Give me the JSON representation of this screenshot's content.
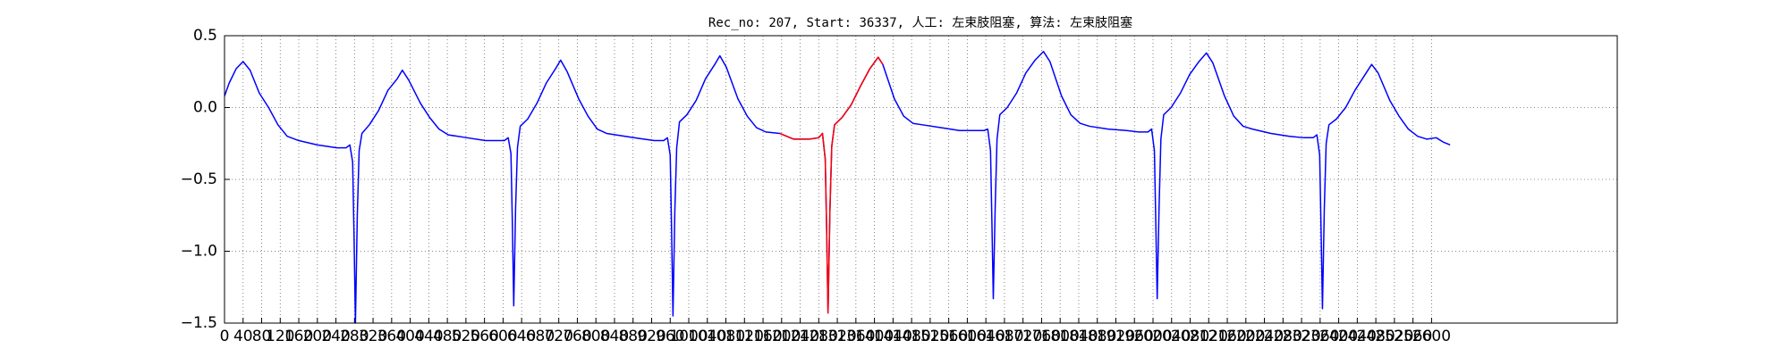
{
  "chart_data": {
    "type": "line",
    "title": "Rec_no: 207, Start: 36337, 人工: 左束肢阻塞, 算法: 左束肢阻塞",
    "xlim": [
      0,
      3000
    ],
    "xticks": [
      0,
      40,
      80,
      120,
      160,
      200,
      240,
      280,
      320,
      360,
      400,
      440,
      480,
      520,
      560,
      600,
      640,
      680,
      720,
      760,
      800,
      840,
      880,
      920,
      960,
      1000,
      1040,
      1080,
      1120,
      1160,
      1200,
      1240,
      1280,
      1320,
      1360,
      1400,
      1440,
      1480,
      1520,
      1560,
      1600,
      1640,
      1680,
      1720,
      1760,
      1800,
      1840,
      1880,
      1920,
      1960,
      2000,
      2040,
      2080,
      2120,
      2160,
      2200,
      2240,
      2280,
      2320,
      2360,
      2400,
      2440,
      2480,
      2520,
      2560,
      2600
    ],
    "ylim": [
      -1.5,
      0.5
    ],
    "yticks": [
      {
        "value": -1.5,
        "label": "−1.5"
      },
      {
        "value": -1.0,
        "label": "−1.0"
      },
      {
        "value": -0.5,
        "label": "−0.5"
      },
      {
        "value": 0,
        "label": "0.0"
      },
      0.5
    ],
    "grid": true,
    "series": [
      {
        "color": "#0000ff",
        "x": [
          0,
          10,
          25,
          40,
          55,
          75,
          95,
          115,
          135,
          160,
          200,
          242,
          262,
          270,
          276,
          279,
          282,
          286,
          290,
          296,
          312,
          332,
          352,
          372,
          383,
          397,
          422,
          442,
          462,
          482,
          522,
          562,
          583,
          603,
          611,
          617,
          620,
          623,
          627,
          631,
          637,
          653,
          673,
          693,
          713,
          724,
          738,
          763,
          783,
          803,
          823,
          863,
          903,
          926,
          946,
          954,
          960,
          963,
          966,
          970,
          974,
          980,
          996,
          1016,
          1036,
          1056,
          1067,
          1081,
          1106,
          1126,
          1146,
          1166,
          1196,
          1226,
          1260,
          1280,
          1288,
          1294,
          1297,
          1300,
          1304,
          1308,
          1314,
          1330,
          1350,
          1370,
          1390,
          1408,
          1418,
          1443,
          1463,
          1483,
          1503,
          1543,
          1583,
          1616,
          1636,
          1644,
          1650,
          1653,
          1656,
          1660,
          1664,
          1670,
          1686,
          1706,
          1726,
          1746,
          1764,
          1778,
          1803,
          1823,
          1843,
          1863,
          1903,
          1943,
          1969,
          1989,
          1997,
          2003,
          2006,
          2009,
          2013,
          2017,
          2023,
          2039,
          2059,
          2079,
          2099,
          2115,
          2129,
          2154,
          2174,
          2194,
          2214,
          2254,
          2294,
          2325,
          2345,
          2353,
          2359,
          2362,
          2365,
          2369,
          2373,
          2379,
          2395,
          2415,
          2435,
          2455,
          2471,
          2485,
          2510,
          2530,
          2550,
          2570,
          2590,
          2610,
          2625,
          2640
        ],
        "values": [
          0.08,
          0.17,
          0.27,
          0.32,
          0.26,
          0.1,
          0.0,
          -0.12,
          -0.2,
          -0.23,
          -0.26,
          -0.28,
          -0.28,
          -0.26,
          -0.38,
          -0.9,
          -1.5,
          -0.75,
          -0.3,
          -0.18,
          -0.12,
          -0.02,
          0.12,
          0.2,
          0.26,
          0.19,
          0.03,
          -0.07,
          -0.15,
          -0.19,
          -0.21,
          -0.23,
          -0.23,
          -0.23,
          -0.21,
          -0.32,
          -0.8,
          -1.38,
          -0.7,
          -0.28,
          -0.13,
          -0.08,
          0.03,
          0.17,
          0.27,
          0.33,
          0.25,
          0.06,
          -0.06,
          -0.15,
          -0.18,
          -0.2,
          -0.22,
          -0.23,
          -0.23,
          -0.21,
          -0.33,
          -0.85,
          -1.45,
          -0.72,
          -0.28,
          -0.1,
          -0.05,
          0.05,
          0.2,
          0.3,
          0.36,
          0.28,
          0.06,
          -0.06,
          -0.14,
          -0.17,
          -0.18,
          -0.22,
          -0.22,
          -0.21,
          -0.18,
          -0.36,
          -0.85,
          -1.43,
          -0.72,
          -0.27,
          -0.12,
          -0.07,
          0.02,
          0.15,
          0.27,
          0.35,
          0.3,
          0.06,
          -0.06,
          -0.11,
          -0.12,
          -0.14,
          -0.16,
          -0.16,
          -0.16,
          -0.15,
          -0.3,
          -0.8,
          -1.33,
          -0.7,
          -0.22,
          -0.05,
          0.0,
          0.1,
          0.24,
          0.33,
          0.39,
          0.32,
          0.08,
          -0.05,
          -0.11,
          -0.13,
          -0.15,
          -0.16,
          -0.17,
          -0.17,
          -0.15,
          -0.3,
          -0.8,
          -1.33,
          -0.7,
          -0.22,
          -0.05,
          0.0,
          0.1,
          0.23,
          0.32,
          0.38,
          0.31,
          0.08,
          -0.06,
          -0.13,
          -0.15,
          -0.18,
          -0.2,
          -0.21,
          -0.21,
          -0.19,
          -0.33,
          -0.85,
          -1.4,
          -0.7,
          -0.25,
          -0.12,
          -0.08,
          0.0,
          0.12,
          0.22,
          0.3,
          0.24,
          0.05,
          -0.06,
          -0.15,
          -0.2,
          -0.22,
          -0.21,
          -0.24,
          -0.26
        ]
      },
      {
        "color": "#ff0000",
        "x": [
          1196,
          1226,
          1260,
          1280,
          1288,
          1294,
          1297,
          1300,
          1304,
          1308,
          1314,
          1330,
          1350,
          1370,
          1390,
          1408,
          1418
        ],
        "values": [
          -0.18,
          -0.22,
          -0.22,
          -0.21,
          -0.18,
          -0.36,
          -0.85,
          -1.43,
          -0.72,
          -0.27,
          -0.12,
          -0.07,
          0.02,
          0.15,
          0.27,
          0.35,
          0.3
        ]
      }
    ]
  }
}
